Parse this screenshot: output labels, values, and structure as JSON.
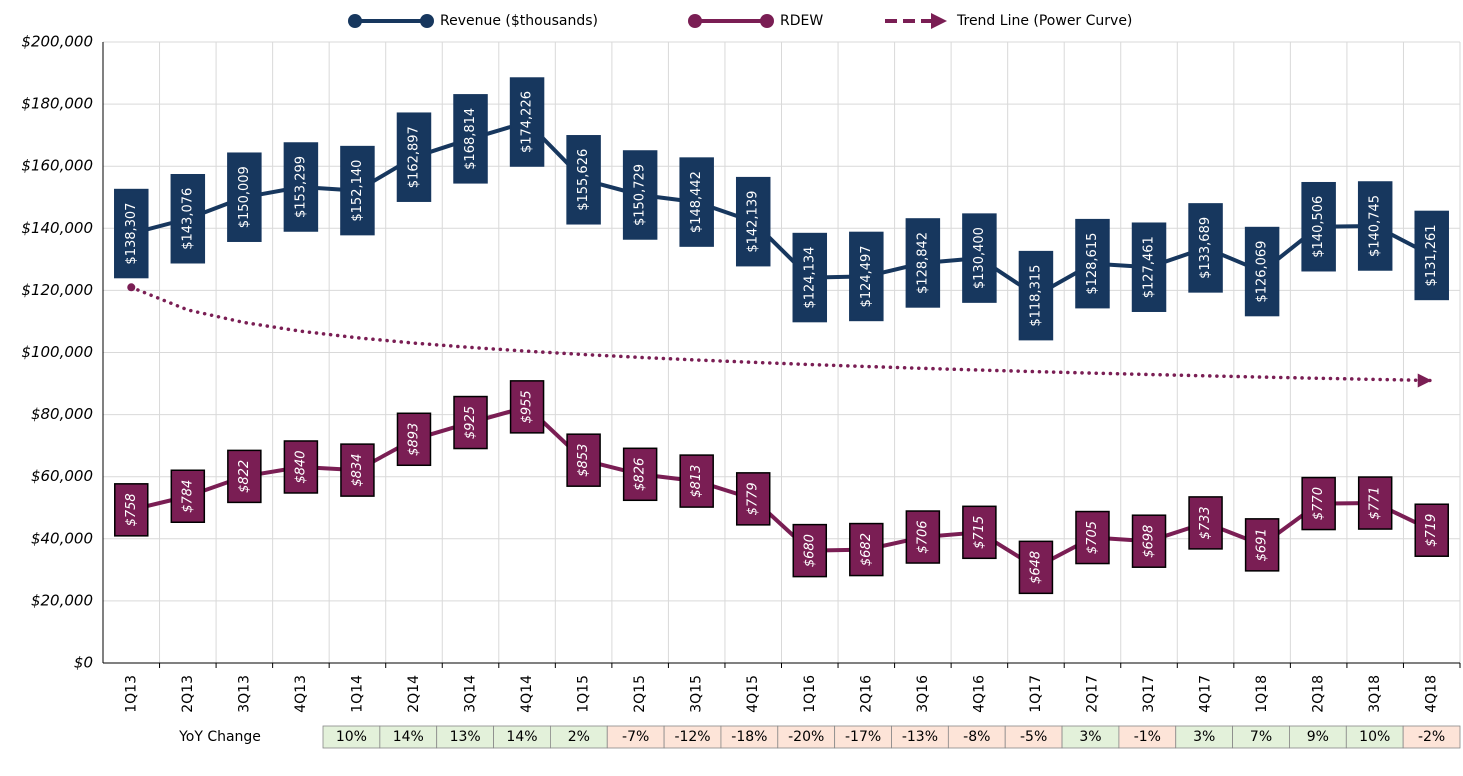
{
  "chart_data": {
    "type": "line",
    "categories": [
      "1Q13",
      "2Q13",
      "3Q13",
      "4Q13",
      "1Q14",
      "2Q14",
      "3Q14",
      "4Q14",
      "1Q15",
      "2Q15",
      "3Q15",
      "4Q15",
      "1Q16",
      "2Q16",
      "3Q16",
      "4Q16",
      "1Q17",
      "2Q17",
      "3Q17",
      "4Q17",
      "1Q18",
      "2Q18",
      "3Q18",
      "4Q18"
    ],
    "series": [
      {
        "name": "Revenue ($thousands)",
        "color": "#17375e",
        "values": [
          138307,
          143076,
          150009,
          153299,
          152140,
          162897,
          168814,
          174226,
          155626,
          150729,
          148442,
          142139,
          124134,
          124497,
          128842,
          130400,
          118315,
          128615,
          127461,
          133689,
          126069,
          140506,
          140745,
          131261
        ],
        "value_labels": [
          "$138,307",
          "$143,076",
          "$150,009",
          "$153,299",
          "$152,140",
          "$162,897",
          "$168,814",
          "$174,226",
          "$155,626",
          "$150,729",
          "$148,442",
          "$142,139",
          "$124,134",
          "$124,497",
          "$128,842",
          "$130,400",
          "$118,315",
          "$128,615",
          "$127,461",
          "$133,689",
          "$126,069",
          "$140,506",
          "$140,745",
          "$131,261"
        ]
      },
      {
        "name": "RDEW",
        "color": "#7a1e54",
        "axis": "y2",
        "values": [
          758,
          784,
          822,
          840,
          834,
          893,
          925,
          955,
          853,
          826,
          813,
          779,
          680,
          682,
          706,
          715,
          648,
          705,
          698,
          733,
          691,
          770,
          771,
          719
        ],
        "value_labels": [
          "$758",
          "$784",
          "$822",
          "$840",
          "$834",
          "$893",
          "$925",
          "$955",
          "$853",
          "$826",
          "$813",
          "$779",
          "$680",
          "$682",
          "$706",
          "$715",
          "$648",
          "$705",
          "$698",
          "$733",
          "$691",
          "$770",
          "$771",
          "$719"
        ]
      },
      {
        "name": "Trend Line (Power Curve)",
        "color": "#7a1e54",
        "style": "dotted",
        "values": [
          121000,
          113700,
          109650,
          106850,
          104740,
          103030,
          101630,
          100420,
          99350,
          98420,
          97590,
          96830,
          96130,
          95500,
          94900,
          94350,
          93840,
          93360,
          92920,
          92490,
          92080,
          91700,
          91340,
          90980
        ]
      }
    ],
    "ylim": [
      0,
      200000
    ],
    "yticks": [
      {
        "value": 0,
        "label": "$0"
      },
      {
        "value": 20000,
        "label": "$20,000"
      },
      {
        "value": 40000,
        "label": "$40,000"
      },
      {
        "value": 60000,
        "label": "$60,000"
      },
      {
        "value": 80000,
        "label": "$80,000"
      },
      {
        "value": 100000,
        "label": "$100,000"
      },
      {
        "value": 120000,
        "label": "$120,000"
      },
      {
        "value": 140000,
        "label": "$140,000"
      },
      {
        "value": 160000,
        "label": "$160,000"
      },
      {
        "value": 180000,
        "label": "$180,000"
      },
      {
        "value": 200000,
        "label": "$200,000"
      }
    ],
    "y2lim": [
      465,
      1653
    ],
    "grid": true,
    "legend": "top",
    "yoy_change": {
      "label": "YoY Change",
      "values": [
        "10%",
        "14%",
        "13%",
        "14%",
        "2%",
        "-7%",
        "-12%",
        "-18%",
        "-20%",
        "-17%",
        "-13%",
        "-8%",
        "-5%",
        "3%",
        "-1%",
        "3%",
        "7%",
        "9%",
        "10%",
        "-2%"
      ]
    }
  }
}
